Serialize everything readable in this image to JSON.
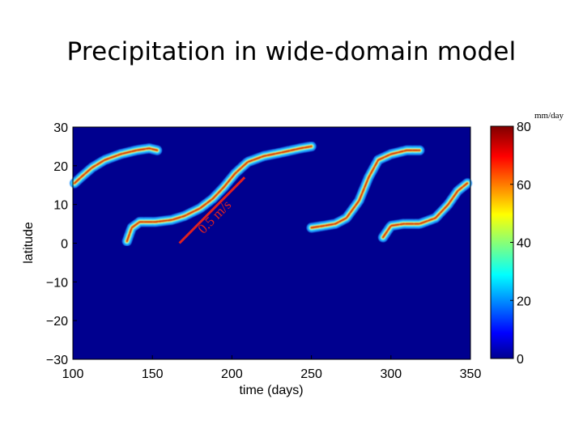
{
  "slide": {
    "title": "Precipitation in wide-domain model",
    "units": "mm/day"
  },
  "chart_data": {
    "type": "heatmap",
    "xlabel": "time (days)",
    "ylabel": "latitude",
    "xlim": [
      100,
      350
    ],
    "ylim": [
      -30,
      30
    ],
    "xticks": [
      100,
      150,
      200,
      250,
      300,
      350
    ],
    "yticks": [
      30,
      20,
      10,
      0,
      -10,
      -20,
      -30
    ],
    "colorbar": {
      "min": 0,
      "max": 80,
      "ticks": [
        80,
        60,
        40,
        20,
        0
      ]
    },
    "background_color": "#00008f",
    "annotation": {
      "text": "0.5 m/s",
      "line_start": [
        167,
        0
      ],
      "line_end": [
        208,
        17
      ]
    },
    "bands": [
      {
        "name": "band-1a",
        "points": [
          [
            101,
            15.5
          ],
          [
            105,
            17
          ],
          [
            112,
            19.5
          ],
          [
            120,
            21.5
          ],
          [
            130,
            23
          ],
          [
            140,
            24
          ],
          [
            148,
            24.5
          ],
          [
            153,
            24
          ]
        ]
      },
      {
        "name": "band-1b",
        "points": [
          [
            134,
            0.5
          ],
          [
            137,
            4
          ],
          [
            142,
            5.5
          ],
          [
            152,
            5.5
          ],
          [
            162,
            6
          ],
          [
            170,
            7
          ],
          [
            180,
            9
          ],
          [
            188,
            11.5
          ],
          [
            195,
            14.5
          ],
          [
            202,
            18
          ],
          [
            210,
            21
          ],
          [
            220,
            22.5
          ],
          [
            232,
            23.5
          ],
          [
            243,
            24.5
          ],
          [
            250,
            25
          ]
        ]
      },
      {
        "name": "band-2",
        "points": [
          [
            250,
            4
          ],
          [
            258,
            4.5
          ],
          [
            265,
            5
          ],
          [
            272,
            6.5
          ],
          [
            280,
            11
          ],
          [
            286,
            17
          ],
          [
            292,
            21.5
          ],
          [
            300,
            23
          ],
          [
            310,
            24
          ],
          [
            318,
            24
          ]
        ]
      },
      {
        "name": "band-3",
        "points": [
          [
            295,
            1.5
          ],
          [
            300,
            4.5
          ],
          [
            308,
            5
          ],
          [
            318,
            5
          ],
          [
            328,
            6.5
          ],
          [
            336,
            10
          ],
          [
            342,
            13.5
          ],
          [
            348,
            15.5
          ]
        ]
      }
    ]
  }
}
